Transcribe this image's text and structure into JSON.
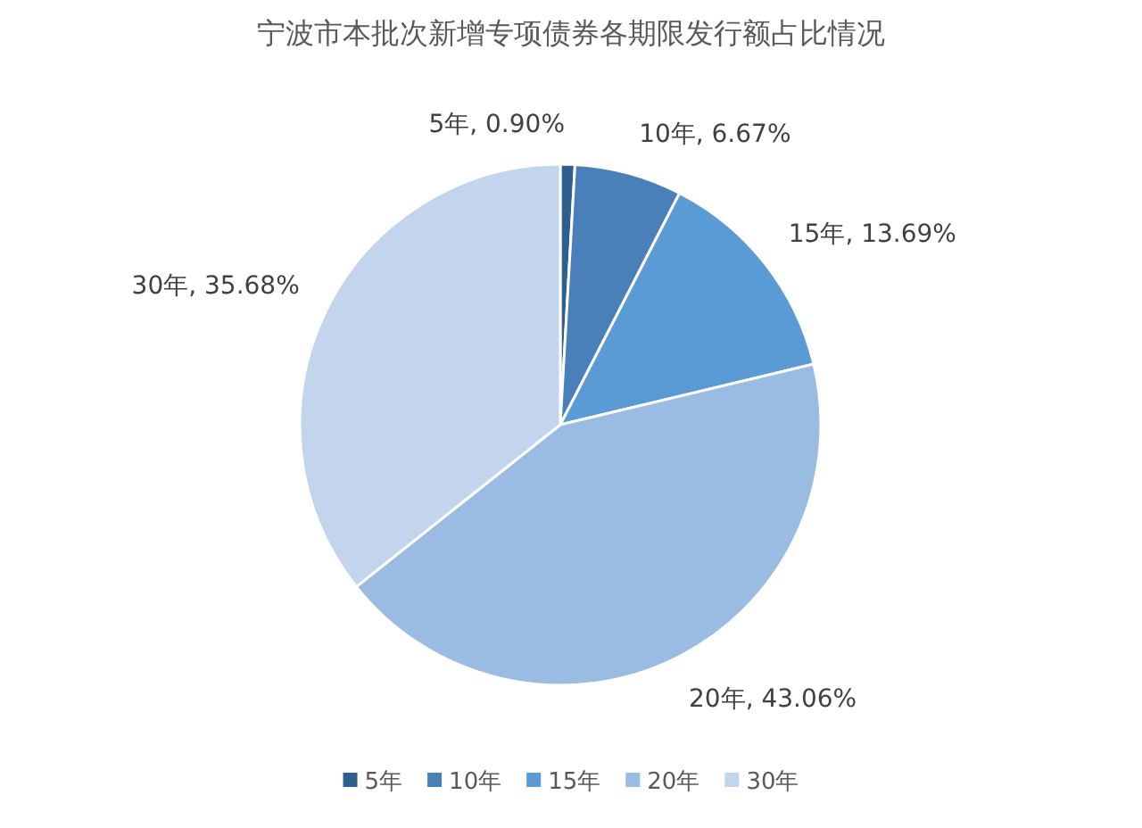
{
  "chart_data": {
    "type": "pie",
    "title": "宁波市本批次新增专项债券各期限发行额占比情况",
    "categories": [
      "5年",
      "10年",
      "15年",
      "20年",
      "30年"
    ],
    "values": [
      0.9,
      6.67,
      13.69,
      43.06,
      35.68
    ],
    "value_labels": [
      "5年, 0.90%",
      "10年, 6.67%",
      "15年, 13.69%",
      "20年, 43.06%",
      "30年, 35.68%"
    ],
    "colors": [
      "#2f5f8f",
      "#4a80b9",
      "#5b9bd5",
      "#9abce2",
      "#c3d5ec"
    ],
    "legend": "bottom"
  }
}
